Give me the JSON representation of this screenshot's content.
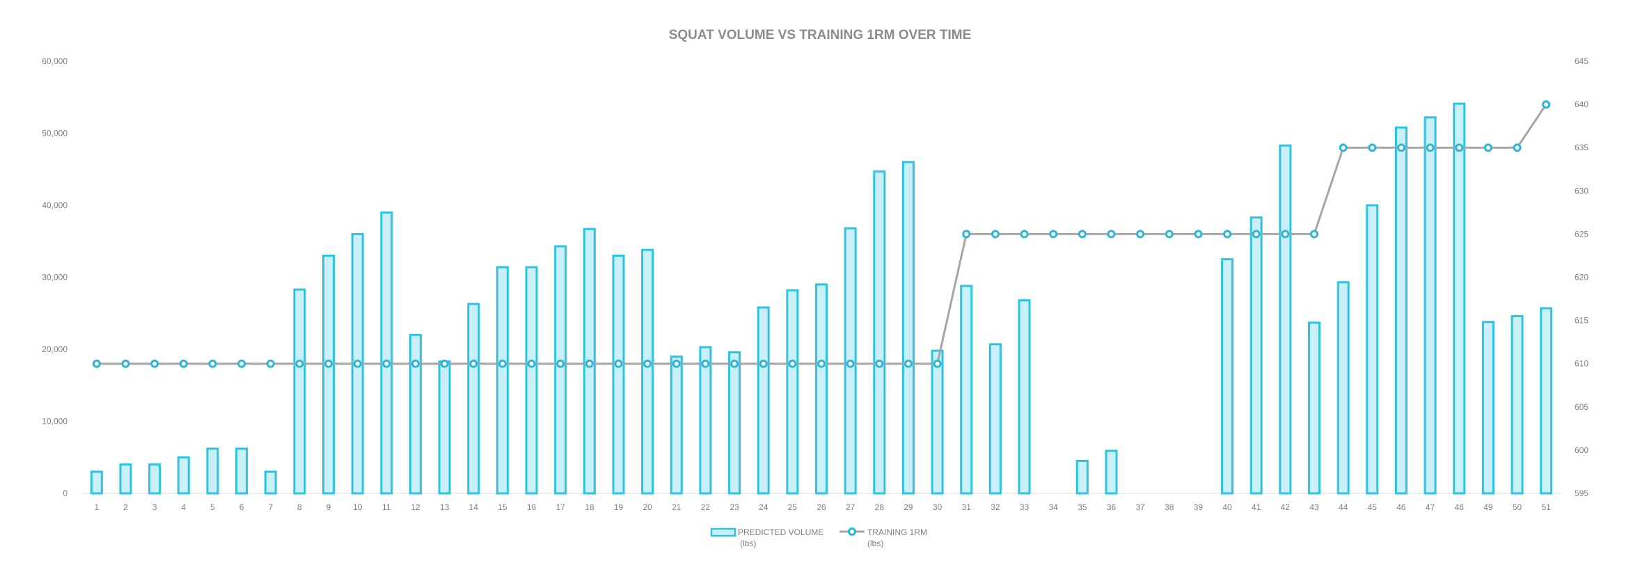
{
  "chart_data": {
    "type": "bar+line",
    "title": "SQUAT VOLUME VS TRAINING 1RM OVER TIME",
    "categories": [
      "1",
      "2",
      "3",
      "4",
      "5",
      "6",
      "7",
      "8",
      "9",
      "10",
      "11",
      "12",
      "13",
      "14",
      "15",
      "16",
      "17",
      "18",
      "19",
      "20",
      "21",
      "22",
      "23",
      "24",
      "25",
      "26",
      "27",
      "28",
      "29",
      "30",
      "31",
      "32",
      "33",
      "34",
      "35",
      "36",
      "37",
      "38",
      "39",
      "40",
      "41",
      "42",
      "43",
      "44",
      "45",
      "46",
      "47",
      "48",
      "49",
      "50",
      "51"
    ],
    "series": [
      {
        "name": "PREDICTED VOLUME",
        "name_line2": "(lbs)",
        "type": "bar",
        "axis": "left",
        "color": "#2ec4e0",
        "fill": "#c9eff8",
        "values": [
          3000,
          4000,
          4000,
          5000,
          6200,
          6200,
          3000,
          28300,
          33000,
          36000,
          39000,
          22000,
          18300,
          26300,
          31400,
          31400,
          34300,
          36700,
          33000,
          33800,
          19000,
          20300,
          19600,
          25800,
          28200,
          29000,
          36800,
          44700,
          46000,
          19800,
          28800,
          20700,
          26800,
          0,
          4500,
          5900,
          0,
          0,
          0,
          32500,
          38300,
          48300,
          23700,
          29300,
          40000,
          50800,
          52200,
          54100,
          23800,
          24600,
          25700
        ]
      },
      {
        "name": "TRAINING 1RM",
        "name_line2": "(lbs)",
        "type": "line",
        "axis": "right",
        "color": "#2ab7d8",
        "line_color": "#a6a6a6",
        "values": [
          610,
          610,
          610,
          610,
          610,
          610,
          610,
          610,
          610,
          610,
          610,
          610,
          610,
          610,
          610,
          610,
          610,
          610,
          610,
          610,
          610,
          610,
          610,
          610,
          610,
          610,
          610,
          610,
          610,
          610,
          625,
          625,
          625,
          625,
          625,
          625,
          625,
          625,
          625,
          625,
          625,
          625,
          625,
          635,
          635,
          635,
          635,
          635,
          635,
          635,
          640
        ]
      }
    ],
    "y_left": {
      "min": 0,
      "max": 60000,
      "ticks": [
        "0",
        "10,000",
        "20,000",
        "30,000",
        "40,000",
        "50,000",
        "60,000"
      ]
    },
    "y_right": {
      "min": 595,
      "max": 645,
      "ticks": [
        "595",
        "600",
        "605",
        "610",
        "615",
        "620",
        "625",
        "630",
        "635",
        "640",
        "645"
      ]
    },
    "grid": false,
    "legend_position": "bottom"
  }
}
